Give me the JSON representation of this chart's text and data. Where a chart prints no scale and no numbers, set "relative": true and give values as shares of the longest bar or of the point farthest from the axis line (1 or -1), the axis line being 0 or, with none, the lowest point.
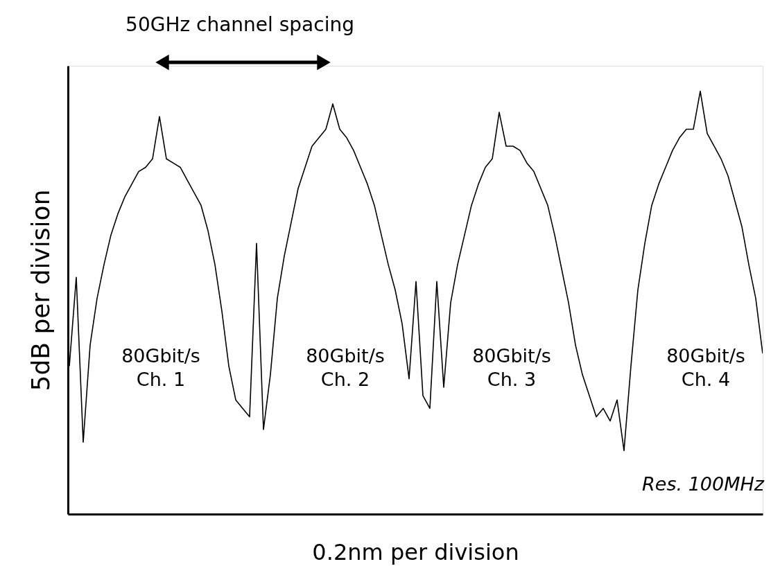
{
  "chart_data": {
    "type": "line",
    "relative": true,
    "xlabel": "0.2nm per division",
    "ylabel": "5dB per division",
    "categories": [
      null,
      null,
      null,
      null,
      null,
      null,
      null,
      null,
      null,
      null,
      null,
      null,
      null,
      null,
      null,
      null,
      null,
      null,
      null,
      null,
      null,
      null,
      null,
      null,
      null,
      null,
      null,
      null,
      null,
      null,
      null,
      null,
      null,
      null,
      null,
      null,
      null,
      null,
      null,
      null,
      null,
      null,
      null,
      null,
      null,
      null,
      null,
      null,
      null,
      null,
      null,
      null,
      null,
      null,
      null,
      null,
      null,
      null,
      null,
      null,
      null,
      null,
      null,
      null,
      null,
      null,
      null,
      null,
      null,
      null,
      null,
      null,
      null,
      null,
      null,
      null,
      null,
      null,
      null,
      null,
      null,
      null,
      null,
      null,
      null,
      null,
      null,
      null,
      null,
      null,
      null,
      null,
      null,
      null,
      null,
      null,
      null,
      null,
      null,
      null,
      null
    ],
    "series": [
      {
        "color": "#000000",
        "values": [
          0.35,
          0.56,
          0.17,
          0.4,
          0.51,
          0.59,
          0.66,
          0.71,
          0.75,
          0.78,
          0.81,
          0.82,
          0.84,
          0.94,
          0.84,
          0.83,
          0.82,
          0.79,
          0.76,
          0.73,
          0.67,
          0.59,
          0.48,
          0.35,
          0.27,
          0.25,
          0.23,
          0.64,
          0.2,
          0.33,
          0.51,
          0.61,
          0.69,
          0.77,
          0.82,
          0.87,
          0.89,
          0.91,
          0.97,
          0.91,
          0.89,
          0.86,
          0.82,
          0.78,
          0.73,
          0.66,
          0.59,
          0.53,
          0.45,
          0.32,
          0.55,
          0.28,
          0.25,
          0.55,
          0.3,
          0.5,
          0.59,
          0.66,
          0.73,
          0.78,
          0.82,
          0.84,
          0.95,
          0.87,
          0.87,
          0.86,
          0.83,
          0.81,
          0.77,
          0.73,
          0.66,
          0.58,
          0.5,
          0.4,
          0.33,
          0.28,
          0.23,
          0.25,
          0.22,
          0.27,
          0.15,
          0.35,
          0.53,
          0.64,
          0.73,
          0.78,
          0.82,
          0.86,
          0.89,
          0.91,
          0.91,
          1.0,
          0.9,
          0.87,
          0.84,
          0.8,
          0.74,
          0.68,
          0.59,
          0.51,
          0.38
        ]
      }
    ],
    "annotations": [
      "50GHz channel spacing",
      "80Gbit/s\nCh. 1",
      "80Gbit/s\nCh. 2",
      "80Gbit/s\nCh. 3",
      "80Gbit/s\nCh. 4",
      "Res. 100MHz"
    ]
  }
}
